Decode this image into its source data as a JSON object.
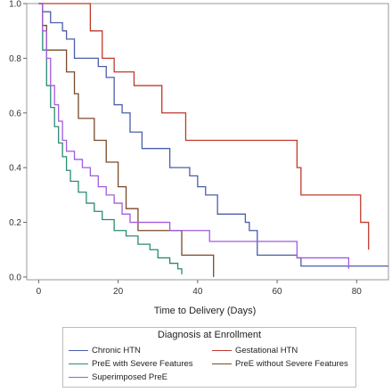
{
  "chart_data": {
    "type": "line",
    "step": true,
    "xlabel": "Time to Delivery (Days)",
    "ylabel": "",
    "xlim": [
      -3,
      88
    ],
    "ylim": [
      -0.01,
      1.0
    ],
    "xticks": [
      0,
      20,
      40,
      60,
      80
    ],
    "yticks": [
      0.0,
      0.2,
      0.4,
      0.6,
      0.8,
      1.0
    ],
    "xtick_labels": [
      "0",
      "20",
      "40",
      "60",
      "80"
    ],
    "ytick_labels": [
      "0.0",
      "0.2",
      "0.4",
      "0.6",
      "0.8",
      "1.0"
    ],
    "legend": {
      "title": "Diagnosis at Enrollment",
      "placement": "bottom"
    },
    "series": [
      {
        "name": "Chronic HTN",
        "color": "#4c5ea8",
        "x": [
          0,
          1,
          3,
          6,
          7,
          9,
          15,
          17,
          19,
          21,
          23,
          26,
          33,
          38,
          40,
          42,
          45,
          52,
          53,
          55,
          65,
          66,
          88
        ],
        "y": [
          1.0,
          0.97,
          0.93,
          0.9,
          0.87,
          0.8,
          0.77,
          0.73,
          0.63,
          0.6,
          0.53,
          0.47,
          0.4,
          0.37,
          0.33,
          0.3,
          0.23,
          0.2,
          0.17,
          0.08,
          0.07,
          0.04,
          0.04
        ]
      },
      {
        "name": "Gestational HTN",
        "color": "#c0392b",
        "x": [
          0,
          1,
          13,
          16,
          19,
          24,
          31,
          37,
          65,
          66,
          81,
          83
        ],
        "y": [
          1.0,
          1.0,
          0.9,
          0.8,
          0.75,
          0.7,
          0.6,
          0.5,
          0.4,
          0.3,
          0.2,
          0.1
        ]
      },
      {
        "name": "PreE with Severe Features",
        "color": "#2a8a76",
        "x": [
          0,
          1,
          2,
          3,
          4,
          5,
          6,
          7,
          8,
          10,
          12,
          14,
          16,
          19,
          22,
          25,
          28,
          30,
          33,
          35,
          36
        ],
        "y": [
          1.0,
          0.83,
          0.7,
          0.62,
          0.55,
          0.49,
          0.44,
          0.39,
          0.35,
          0.31,
          0.27,
          0.24,
          0.21,
          0.17,
          0.15,
          0.12,
          0.1,
          0.07,
          0.05,
          0.03,
          0.01
        ]
      },
      {
        "name": "PreE without Severe Features",
        "color": "#7a4a2a",
        "x": [
          0,
          1,
          2,
          7,
          9,
          10,
          14,
          17,
          20,
          22,
          25,
          30,
          36,
          44
        ],
        "y": [
          1.0,
          0.92,
          0.83,
          0.75,
          0.67,
          0.58,
          0.5,
          0.42,
          0.33,
          0.25,
          0.17,
          0.17,
          0.08,
          0.0
        ]
      },
      {
        "name": "Superimposed PreE",
        "color": "#a15be0",
        "x": [
          0,
          1,
          2,
          3,
          4,
          5,
          6,
          7,
          9,
          11,
          13,
          15,
          17,
          19,
          21,
          23,
          27,
          33,
          43,
          65,
          78
        ],
        "y": [
          1.0,
          0.9,
          0.8,
          0.7,
          0.63,
          0.57,
          0.5,
          0.46,
          0.43,
          0.4,
          0.37,
          0.33,
          0.3,
          0.27,
          0.23,
          0.2,
          0.2,
          0.17,
          0.13,
          0.07,
          0.03
        ]
      }
    ]
  }
}
